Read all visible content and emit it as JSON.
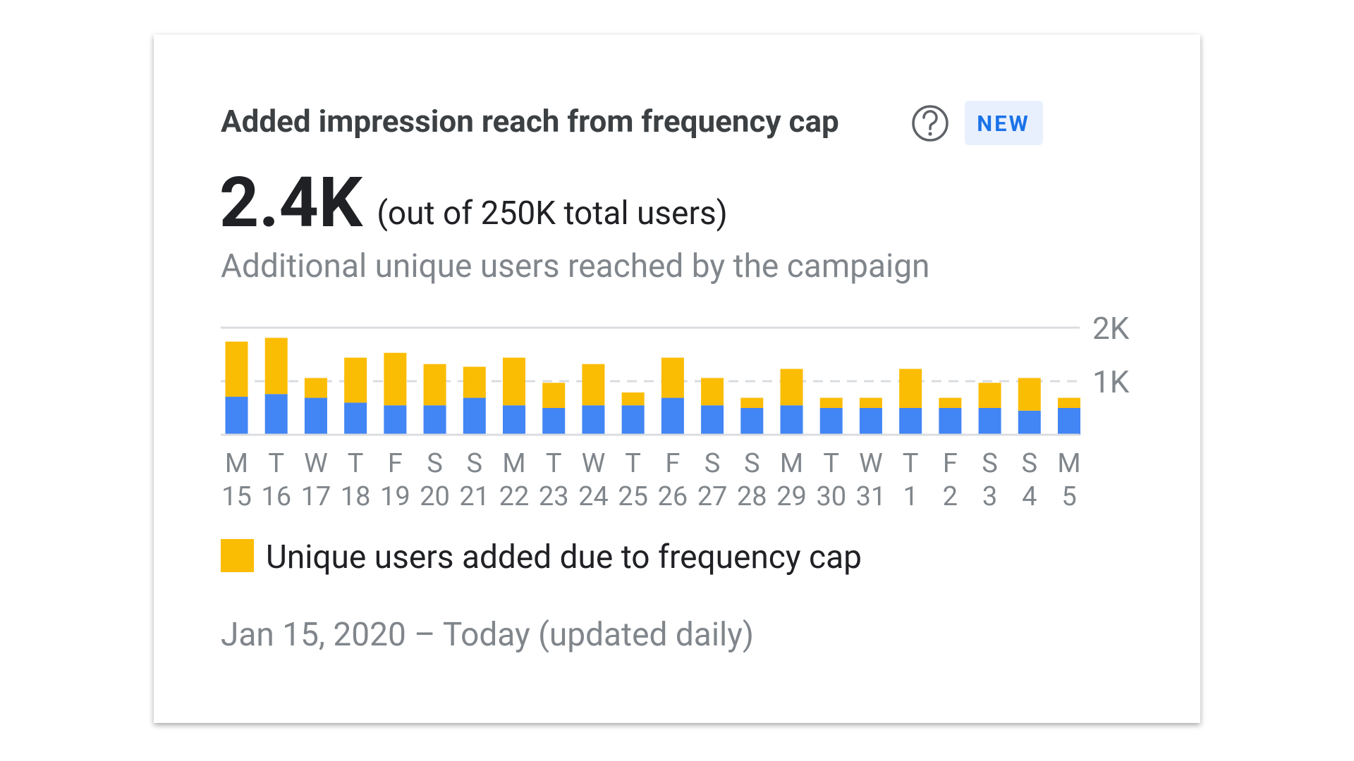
{
  "card": {
    "title": "Added impression reach from frequency cap",
    "badge": "NEW",
    "headline": "2.4K",
    "headline_note": "(out of 250K total users)",
    "subtitle": "Additional unique users reached by the campaign",
    "date_range": "Jan 15, 2020 – Today (updated daily)"
  },
  "chart_data": {
    "type": "stacked-bar",
    "categories": [
      {
        "day": "M",
        "date": "15"
      },
      {
        "day": "T",
        "date": "16"
      },
      {
        "day": "W",
        "date": "17"
      },
      {
        "day": "T",
        "date": "18"
      },
      {
        "day": "F",
        "date": "19"
      },
      {
        "day": "S",
        "date": "20"
      },
      {
        "day": "S",
        "date": "21"
      },
      {
        "day": "M",
        "date": "22"
      },
      {
        "day": "T",
        "date": "23"
      },
      {
        "day": "W",
        "date": "24"
      },
      {
        "day": "T",
        "date": "25"
      },
      {
        "day": "F",
        "date": "26"
      },
      {
        "day": "S",
        "date": "27"
      },
      {
        "day": "S",
        "date": "28"
      },
      {
        "day": "M",
        "date": "29"
      },
      {
        "day": "T",
        "date": "30"
      },
      {
        "day": "W",
        "date": "31"
      },
      {
        "day": "T",
        "date": "1"
      },
      {
        "day": "F",
        "date": "2"
      },
      {
        "day": "S",
        "date": "3"
      },
      {
        "day": "S",
        "date": "4"
      },
      {
        "day": "M",
        "date": "5"
      }
    ],
    "series": [
      {
        "color": "#4285f4",
        "values": [
          710,
          760,
          690,
          600,
          550,
          550,
          690,
          550,
          500,
          550,
          550,
          690,
          550,
          500,
          550,
          500,
          500,
          500,
          500,
          500,
          450,
          500
        ]
      },
      {
        "name": "Unique users added due to frequency cap",
        "color": "#fbbc04",
        "values": [
          1030,
          1050,
          370,
          840,
          980,
          770,
          580,
          890,
          470,
          770,
          240,
          750,
          510,
          190,
          680,
          190,
          190,
          730,
          190,
          470,
          610,
          190
        ]
      }
    ],
    "ylim": [
      0,
      2000
    ],
    "yticks": [
      {
        "value": 1000,
        "label": "1K"
      },
      {
        "value": 2000,
        "label": "2K"
      }
    ],
    "grid": true
  }
}
